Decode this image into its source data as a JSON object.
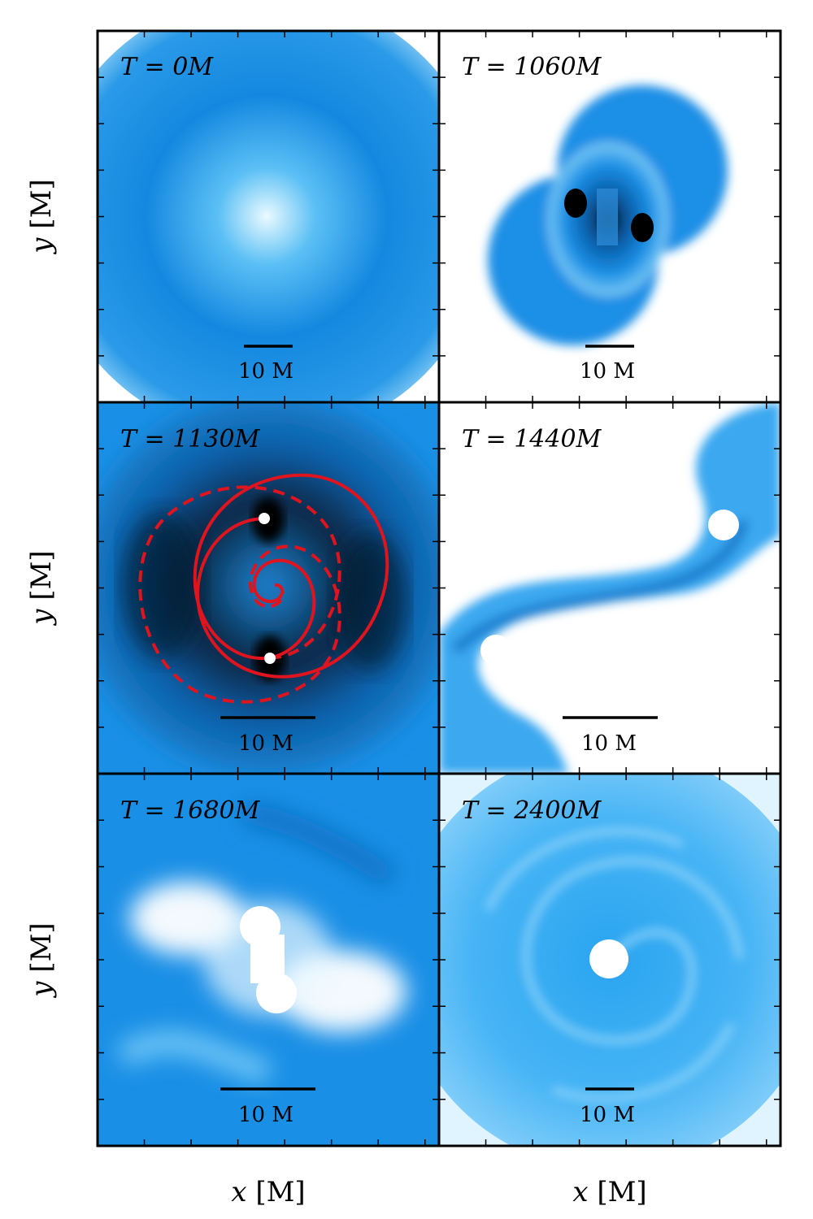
{
  "panels": [
    {
      "time_label": "T = 0M",
      "scale_bar_label": "10 M"
    },
    {
      "time_label": "T = 1060M",
      "scale_bar_label": "10 M"
    },
    {
      "time_label": "T = 1130M",
      "scale_bar_label": "10 M"
    },
    {
      "time_label": "T = 1440M",
      "scale_bar_label": "10 M"
    },
    {
      "time_label": "T = 1680M",
      "scale_bar_label": "10 M"
    },
    {
      "time_label": "T = 2400M",
      "scale_bar_label": "10 M"
    }
  ],
  "axes": {
    "y_label_var": "y",
    "y_label_unit": " [M]",
    "x_label_var": "x",
    "x_label_unit": " [M]"
  },
  "colors": {
    "frame": "#000000",
    "density_light": "#e9f8ff",
    "density_mid": "#1a8fe6",
    "density_dark": "#000a14",
    "trajectory": "#e0141e"
  }
}
